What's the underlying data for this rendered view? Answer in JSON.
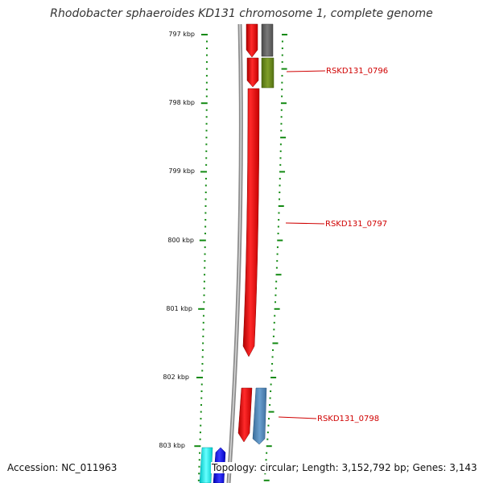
{
  "title": "Rhodobacter sphaeroides KD131 chromosome 1, complete genome",
  "kbp_labels": [
    "797 kbp",
    "798 kbp",
    "799 kbp",
    "800 kbp",
    "801 kbp",
    "802 kbp",
    "803 kbp"
  ],
  "gene_labels": [
    "RSKD131_0796",
    "RSKD131_0797",
    "RSKD131_0798"
  ],
  "footer": {
    "accession": "Accession: NC_011963",
    "topology": "Topology: circular; Length: 3,152,792 bp; Genes: 3,143"
  },
  "colors": {
    "backbone": "#8c8c8c",
    "ticks": "#138a13",
    "forward_gene": "#ee1111",
    "gray_feature": "#6b6b6b",
    "olive_feature": "#6f8f1f",
    "steelblue_feature": "#4f86b8",
    "cyan_feature": "#11dddd",
    "blue_feature": "#1010ee",
    "label_text": "#d00000"
  }
}
